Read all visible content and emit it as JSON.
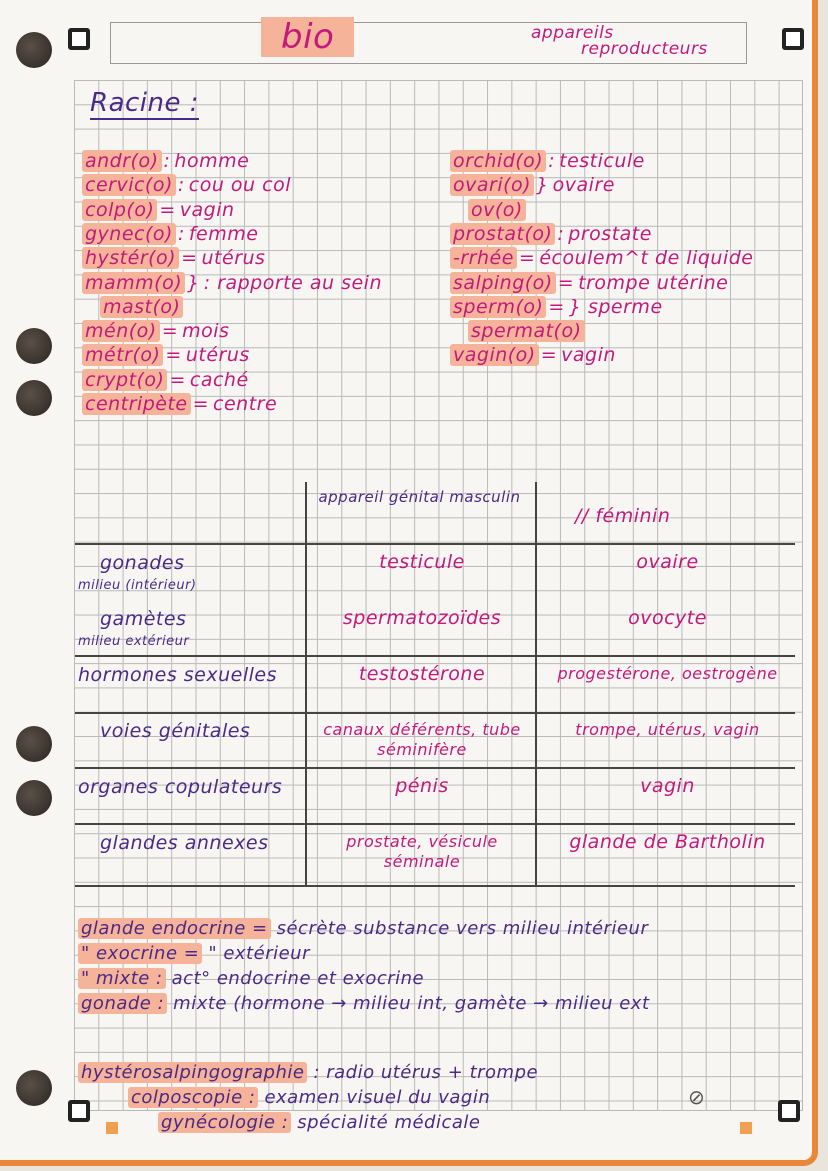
{
  "header": {
    "title": "bio",
    "subtitle_line1": "appareils",
    "subtitle_line2": "reproducteurs"
  },
  "section_title": "Racine :",
  "roots_left": [
    {
      "root": "andr(o)",
      "sep": ":",
      "meaning": "homme"
    },
    {
      "root": "cervic(o)",
      "sep": ":",
      "meaning": "cou ou col"
    },
    {
      "root": "colp(o)",
      "sep": "=",
      "meaning": "vagin"
    },
    {
      "root": "gynec(o)",
      "sep": ":",
      "meaning": "femme"
    },
    {
      "root": "hystér(o)",
      "sep": "=",
      "meaning": "utérus"
    },
    {
      "root": "mamm(o)",
      "sep": "}",
      "meaning": ": rapporte au sein"
    },
    {
      "root": "mast(o)",
      "sep": "",
      "meaning": ""
    },
    {
      "root": "mén(o)",
      "sep": "=",
      "meaning": "mois"
    },
    {
      "root": "métr(o)",
      "sep": "=",
      "meaning": "utérus"
    },
    {
      "root": "crypt(o)",
      "sep": "=",
      "meaning": "caché"
    },
    {
      "root": "centripète",
      "sep": "=",
      "meaning": "centre"
    }
  ],
  "roots_right": [
    {
      "root": "orchid(o)",
      "sep": ":",
      "meaning": "testicule"
    },
    {
      "root": "ovari(o)",
      "sep": "}",
      "meaning": "ovaire"
    },
    {
      "root": "ov(o)",
      "sep": "",
      "meaning": ""
    },
    {
      "root": "prostat(o)",
      "sep": ":",
      "meaning": "prostate"
    },
    {
      "root": "-rrhée",
      "sep": "=",
      "meaning": "écoulem^t de liquide"
    },
    {
      "root": "salping(o)",
      "sep": "=",
      "meaning": "trompe utérine"
    },
    {
      "root": "sperm(o)",
      "sep": "=",
      "meaning": "} sperme"
    },
    {
      "root": "spermat(o)",
      "sep": "",
      "meaning": ""
    },
    {
      "root": "vagin(o)",
      "sep": "=",
      "meaning": "vagin"
    }
  ],
  "table": {
    "headers": [
      "",
      "appareil génital masculin",
      "// féminin"
    ],
    "rows": [
      {
        "label": "gonades",
        "note": "milieu (intérieur)",
        "male": "testicule",
        "female": "ovaire"
      },
      {
        "label": "gamètes",
        "note": "milieu extérieur",
        "male": "spermatozoïdes",
        "female": "ovocyte"
      },
      {
        "label": "hormones sexuelles",
        "note": "",
        "male": "testostérone",
        "female": "progestérone, oestrogène"
      },
      {
        "label": "voies génitales",
        "note": "",
        "male": "canaux déférents, tube séminifère",
        "female": "trompe, utérus, vagin"
      },
      {
        "label": "organes copulateurs",
        "note": "",
        "male": "pénis",
        "female": "vagin"
      },
      {
        "label": "glandes annexes",
        "note": "",
        "male": "prostate, vésicule séminale",
        "female": "glande de Bartholin"
      }
    ]
  },
  "glands": [
    {
      "term": "glande endocrine =",
      "def": "sécrète substance vers milieu intérieur"
    },
    {
      "term": "\"  exocrine =",
      "def": "\"  extérieur"
    },
    {
      "term": "\"  mixte :",
      "def": "act° endocrine et exocrine"
    },
    {
      "term": "gonade :",
      "def": "mixte (hormone → milieu int, gamète → milieu ext"
    }
  ],
  "exams": [
    {
      "term": "hystérosalpingographie",
      "def": ": radio utérus + trompe"
    },
    {
      "term": "colposcopie :",
      "def": "examen visuel du vagin"
    },
    {
      "term": "gynécologie :",
      "def": "spécialité médicale"
    }
  ],
  "colors": {
    "pink_ink": "#c4197c",
    "purple_ink": "#4a2a86",
    "highlight": "#f5b39a",
    "page_edge": "#e9863a"
  }
}
